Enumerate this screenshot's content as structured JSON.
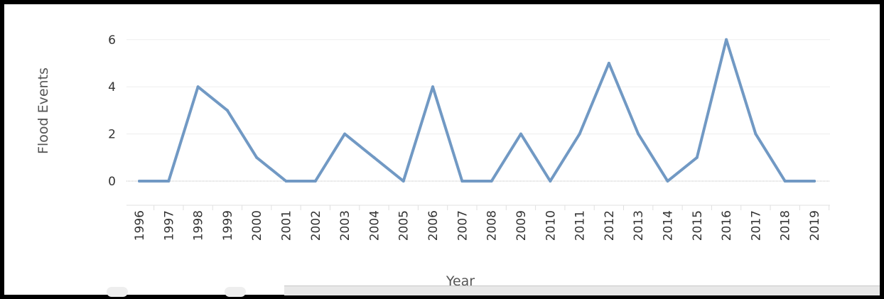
{
  "chart_data": {
    "type": "line",
    "xlabel": "Year",
    "ylabel": "Flood Events",
    "ylim": [
      -1,
      7
    ],
    "yticks": [
      0,
      2,
      4,
      6
    ],
    "grid": true,
    "line_color": "#7199c4",
    "x": [
      "1996",
      "1997",
      "1998",
      "1999",
      "2000",
      "2001",
      "2002",
      "2003",
      "2004",
      "2005",
      "2006",
      "2007",
      "2008",
      "2009",
      "2010",
      "2011",
      "2012",
      "2013",
      "2014",
      "2015",
      "2016",
      "2017",
      "2018",
      "2019"
    ],
    "series": [
      {
        "values": [
          0,
          0,
          4,
          3,
          1,
          0,
          0,
          2,
          1,
          0,
          4,
          0,
          0,
          2,
          0,
          2,
          5,
          2,
          0,
          1,
          6,
          2,
          0,
          0
        ]
      }
    ]
  }
}
